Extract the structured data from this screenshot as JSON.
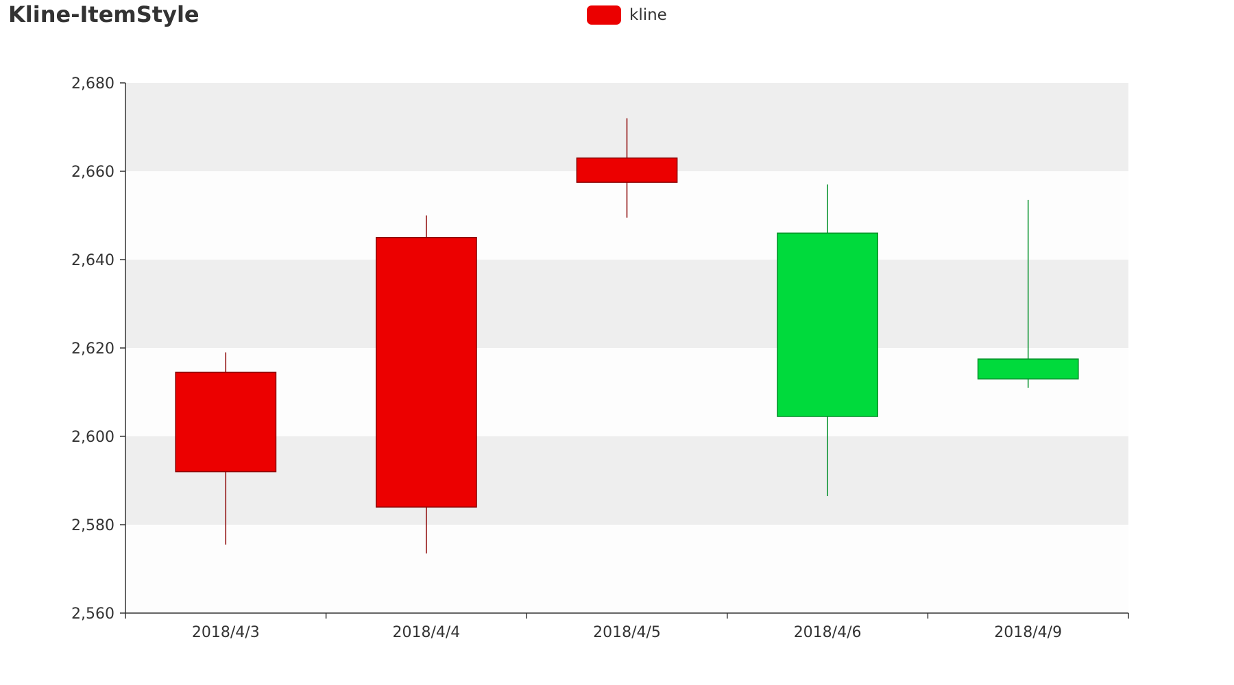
{
  "chart_data": {
    "type": "candlestick",
    "title": "Kline-ItemStyle",
    "legend": [
      "kline"
    ],
    "legend_position": "top-center",
    "categories": [
      "2018/4/3",
      "2018/4/4",
      "2018/4/5",
      "2018/4/6",
      "2018/4/9"
    ],
    "series": [
      {
        "name": "kline",
        "values": [
          {
            "open": 2592,
            "close": 2614.5,
            "low": 2575.5,
            "high": 2619
          },
          {
            "open": 2584,
            "close": 2645,
            "low": 2573.5,
            "high": 2650
          },
          {
            "open": 2657.5,
            "close": 2663,
            "low": 2649.5,
            "high": 2672
          },
          {
            "open": 2646,
            "close": 2604.5,
            "low": 2586.5,
            "high": 2657
          },
          {
            "open": 2617.5,
            "close": 2613,
            "low": 2611,
            "high": 2653.5
          }
        ]
      }
    ],
    "ylim": [
      2560,
      2680
    ],
    "y_ticks": [
      "2,560",
      "2,580",
      "2,600",
      "2,620",
      "2,640",
      "2,660",
      "2,680"
    ],
    "y_tick_values": [
      2560,
      2580,
      2600,
      2620,
      2640,
      2660,
      2680
    ],
    "split_area": true,
    "colors": {
      "up_fill": "#ec0000",
      "up_border": "#8a0000",
      "down_fill": "#00da3c",
      "down_border": "#008f28",
      "band_dark": "#eeeeee",
      "band_light": "#fdfdfd",
      "axis": "#333333"
    }
  }
}
